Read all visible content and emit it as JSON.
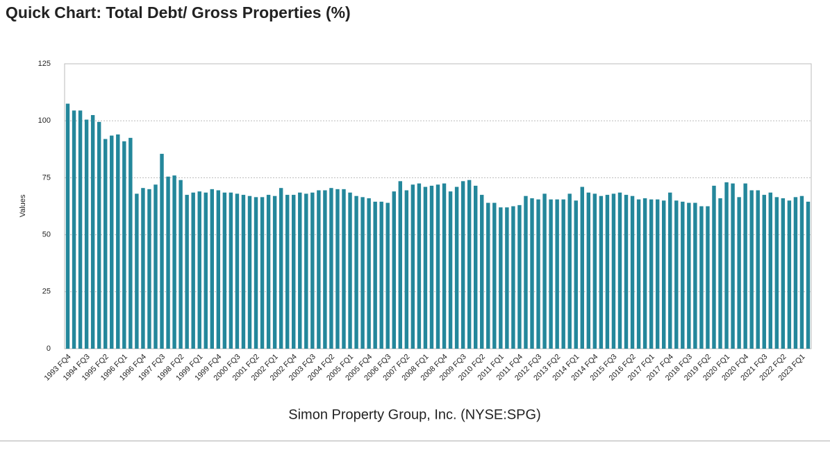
{
  "chart_data": {
    "type": "bar",
    "title": "Quick Chart: Total Debt/ Gross Properties (%)",
    "subtitle": "Simon Property Group, Inc. (NYSE:SPG)",
    "y_label": "Values",
    "color": "#24879b",
    "grid": true,
    "ylim": [
      0,
      125
    ],
    "yticks": [
      0,
      25,
      50,
      75,
      100,
      125
    ],
    "categories": [
      "1993 FQ4",
      null,
      null,
      "1994 FQ3",
      null,
      null,
      "1995 FQ2",
      null,
      null,
      "1996 FQ1",
      null,
      null,
      "1996 FQ4",
      null,
      null,
      "1997 FQ3",
      null,
      null,
      "1998 FQ2",
      null,
      null,
      "1999 FQ1",
      null,
      null,
      "1999 FQ4",
      null,
      null,
      "2000 FQ3",
      null,
      null,
      "2001 FQ2",
      null,
      null,
      "2002 FQ1",
      null,
      null,
      "2002 FQ4",
      null,
      null,
      "2003 FQ3",
      null,
      null,
      "2004 FQ2",
      null,
      null,
      "2005 FQ1",
      null,
      null,
      "2005 FQ4",
      null,
      null,
      "2006 FQ3",
      null,
      null,
      "2007 FQ2",
      null,
      null,
      "2008 FQ1",
      null,
      null,
      "2008 FQ4",
      null,
      null,
      "2009 FQ3",
      null,
      null,
      "2010 FQ2",
      null,
      null,
      "2011 FQ1",
      null,
      null,
      "2011 FQ4",
      null,
      null,
      "2012 FQ3",
      null,
      null,
      "2013 FQ2",
      null,
      null,
      "2014 FQ1",
      null,
      null,
      "2014 FQ4",
      null,
      null,
      "2015 FQ3",
      null,
      null,
      "2016 FQ2",
      null,
      null,
      "2017 FQ1",
      null,
      null,
      "2017 FQ4",
      null,
      null,
      "2018 FQ3",
      null,
      null,
      "2019 FQ2",
      null,
      null,
      "2020 FQ1",
      null,
      null,
      "2020 FQ4",
      null,
      null,
      "2021 FQ3",
      null,
      null,
      "2022 FQ2",
      null,
      null,
      "2023 FQ1",
      null
    ],
    "values": [
      107.5,
      104.5,
      104.5,
      100.5,
      102.5,
      99.5,
      92,
      93.5,
      94,
      91,
      92.5,
      68,
      70.5,
      70,
      72,
      85.5,
      75.5,
      76,
      74,
      67.5,
      68.5,
      69,
      68.5,
      70,
      69.5,
      68.5,
      68.5,
      68,
      67.5,
      67,
      66.5,
      66.5,
      67.5,
      67,
      70.5,
      67.5,
      67.5,
      68.5,
      68,
      68.5,
      69.5,
      69.5,
      70.5,
      70,
      70,
      68.5,
      67,
      66.5,
      66,
      64.5,
      64.5,
      64,
      69,
      73.5,
      69.5,
      72,
      72.5,
      71,
      71.5,
      72,
      72.5,
      69,
      71,
      73.5,
      74,
      71.5,
      67.5,
      64,
      64,
      62,
      62,
      62.5,
      63,
      67,
      66,
      65.5,
      68,
      65.5,
      65.5,
      65.5,
      68,
      65,
      71,
      68.5,
      68,
      67,
      67.5,
      68,
      68.5,
      67.5,
      67,
      65.5,
      66,
      65.5,
      65.5,
      65,
      68.5,
      65,
      64.5,
      64,
      64,
      62.5,
      62.5,
      71.5,
      66,
      73,
      72.5,
      66.5,
      72.5,
      69.5,
      69.5,
      67.5,
      68.5,
      66.5,
      66,
      65,
      66.5,
      67,
      64.5
    ]
  }
}
